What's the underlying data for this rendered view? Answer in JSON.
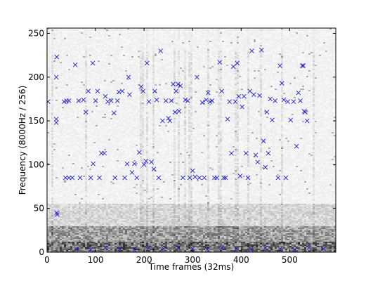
{
  "chart_data": {
    "type": "scatter",
    "background": "spectrogram",
    "xlabel": "Time frames (32ms)",
    "ylabel": "Frequency (8000Hz / 256)",
    "xlim": [
      0,
      595
    ],
    "ylim": [
      0,
      256
    ],
    "xticks": [
      0,
      100,
      200,
      300,
      400,
      500
    ],
    "yticks": [
      0,
      50,
      100,
      150,
      200,
      250
    ],
    "marker": "x",
    "marker_color": "#1f1fd0",
    "grid": false,
    "points": [
      [
        2,
        172
      ],
      [
        20,
        223
      ],
      [
        19,
        200
      ],
      [
        19,
        152
      ],
      [
        19,
        148
      ],
      [
        20,
        45
      ],
      [
        21,
        43
      ],
      [
        35,
        172
      ],
      [
        40,
        173
      ],
      [
        45,
        173
      ],
      [
        38,
        85
      ],
      [
        45,
        85
      ],
      [
        52,
        85
      ],
      [
        58,
        214
      ],
      [
        65,
        173
      ],
      [
        68,
        85
      ],
      [
        75,
        174
      ],
      [
        80,
        160
      ],
      [
        85,
        184
      ],
      [
        90,
        85
      ],
      [
        94,
        216
      ],
      [
        95,
        101
      ],
      [
        100,
        173
      ],
      [
        104,
        184
      ],
      [
        108,
        85
      ],
      [
        112,
        113
      ],
      [
        118,
        113
      ],
      [
        120,
        178
      ],
      [
        125,
        172
      ],
      [
        132,
        173
      ],
      [
        138,
        159
      ],
      [
        140,
        85
      ],
      [
        145,
        173
      ],
      [
        148,
        183
      ],
      [
        155,
        184
      ],
      [
        160,
        85
      ],
      [
        165,
        101
      ],
      [
        168,
        200
      ],
      [
        170,
        180
      ],
      [
        175,
        91
      ],
      [
        180,
        101
      ],
      [
        185,
        85
      ],
      [
        190,
        114
      ],
      [
        194,
        189
      ],
      [
        198,
        184
      ],
      [
        200,
        100
      ],
      [
        204,
        104
      ],
      [
        206,
        216
      ],
      [
        210,
        172
      ],
      [
        215,
        103
      ],
      [
        220,
        95
      ],
      [
        222,
        184
      ],
      [
        226,
        174
      ],
      [
        230,
        85
      ],
      [
        234,
        230
      ],
      [
        238,
        150
      ],
      [
        245,
        173
      ],
      [
        250,
        153
      ],
      [
        253,
        150
      ],
      [
        256,
        173
      ],
      [
        260,
        192
      ],
      [
        264,
        160
      ],
      [
        266,
        184
      ],
      [
        270,
        192
      ],
      [
        272,
        161
      ],
      [
        275,
        190
      ],
      [
        280,
        85
      ],
      [
        285,
        174
      ],
      [
        290,
        173
      ],
      [
        294,
        85
      ],
      [
        300,
        93
      ],
      [
        305,
        86
      ],
      [
        309,
        200
      ],
      [
        314,
        85
      ],
      [
        320,
        171
      ],
      [
        324,
        85
      ],
      [
        328,
        174
      ],
      [
        332,
        182
      ],
      [
        336,
        172
      ],
      [
        340,
        173
      ],
      [
        345,
        85
      ],
      [
        350,
        85
      ],
      [
        356,
        217
      ],
      [
        360,
        184
      ],
      [
        364,
        85
      ],
      [
        368,
        85
      ],
      [
        372,
        152
      ],
      [
        376,
        172
      ],
      [
        380,
        113
      ],
      [
        384,
        212
      ],
      [
        388,
        172
      ],
      [
        392,
        216
      ],
      [
        395,
        178
      ],
      [
        398,
        87
      ],
      [
        402,
        166
      ],
      [
        406,
        178
      ],
      [
        410,
        113
      ],
      [
        414,
        85
      ],
      [
        418,
        184
      ],
      [
        422,
        230
      ],
      [
        426,
        180
      ],
      [
        430,
        111
      ],
      [
        434,
        103
      ],
      [
        438,
        179
      ],
      [
        442,
        231
      ],
      [
        446,
        127
      ],
      [
        450,
        97
      ],
      [
        453,
        160
      ],
      [
        456,
        113
      ],
      [
        460,
        175
      ],
      [
        464,
        151
      ],
      [
        470,
        173
      ],
      [
        476,
        85
      ],
      [
        480,
        213
      ],
      [
        484,
        193
      ],
      [
        488,
        174
      ],
      [
        492,
        85
      ],
      [
        496,
        172
      ],
      [
        502,
        151
      ],
      [
        508,
        172
      ],
      [
        514,
        121
      ],
      [
        518,
        182
      ],
      [
        522,
        173
      ],
      [
        526,
        213
      ],
      [
        528,
        213
      ],
      [
        530,
        161
      ],
      [
        532,
        160
      ],
      [
        536,
        150
      ],
      [
        60,
        4
      ],
      [
        90,
        3
      ],
      [
        120,
        5
      ],
      [
        150,
        4
      ],
      [
        180,
        3
      ],
      [
        210,
        5
      ],
      [
        240,
        4
      ],
      [
        270,
        5
      ],
      [
        300,
        4
      ],
      [
        330,
        3
      ],
      [
        360,
        5
      ],
      [
        390,
        4
      ],
      [
        420,
        3
      ],
      [
        450,
        5
      ],
      [
        480,
        4
      ],
      [
        510,
        3
      ],
      [
        540,
        5
      ],
      [
        570,
        4
      ]
    ]
  }
}
